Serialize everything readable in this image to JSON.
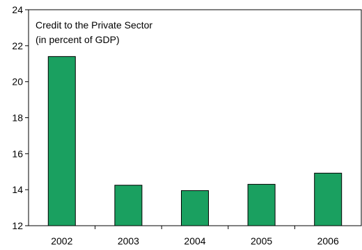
{
  "chart_data": {
    "type": "bar",
    "title": "Credit to the Private Sector",
    "subtitle": "(in percent of GDP)",
    "xlabel": "",
    "ylabel": "",
    "categories": [
      "2002",
      "2003",
      "2004",
      "2005",
      "2006"
    ],
    "values": [
      21.4,
      14.25,
      13.95,
      14.3,
      14.92
    ],
    "ylim": [
      12,
      24
    ],
    "yticks": [
      12,
      14,
      16,
      18,
      20,
      22,
      24
    ],
    "grid": false,
    "legend": "none",
    "bar_color": "#1aa060",
    "bar_edge_color": "#000000"
  }
}
